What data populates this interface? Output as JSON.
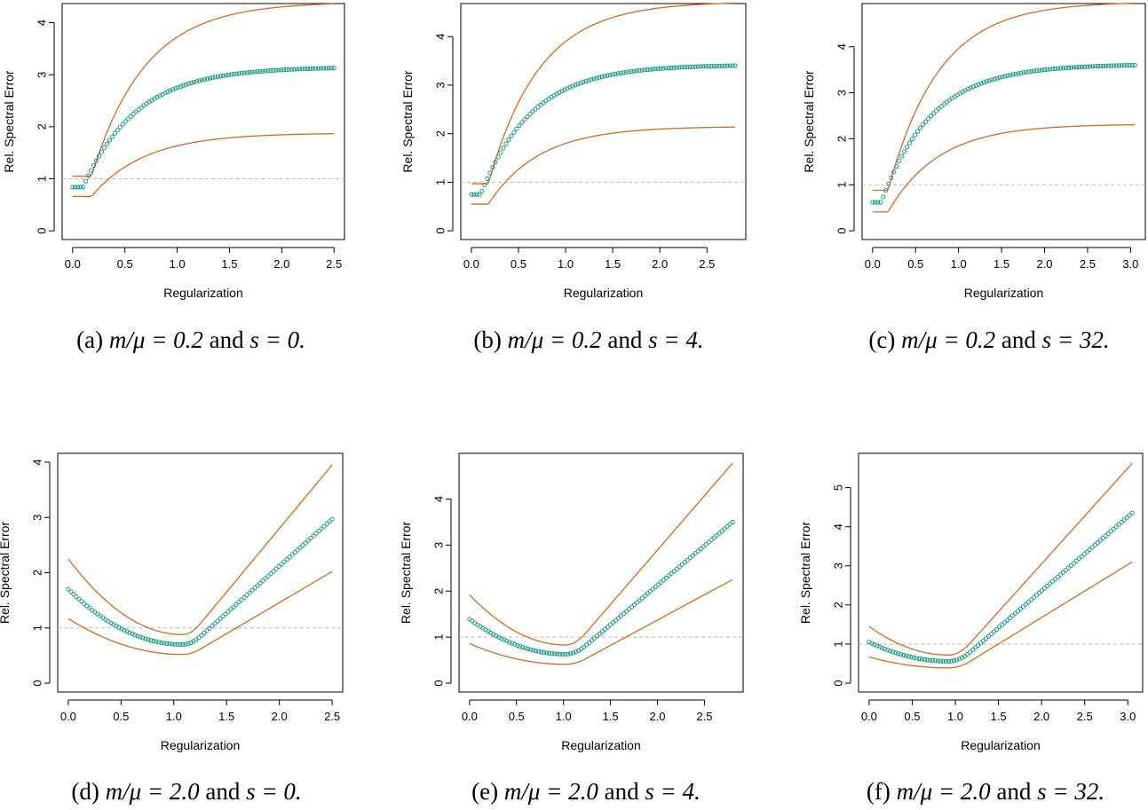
{
  "colors": {
    "band": "#d2691e",
    "mean": "#1a9a82",
    "ref": "#bbbbbb",
    "axis": "#000000"
  },
  "chart_data": [
    {
      "type": "scatter",
      "panel_label": "(a)",
      "ratio": "m/μ = 0.2",
      "conj": "and",
      "s_expr": "s = 0.",
      "xlabel": "Regularization",
      "ylabel": "Rel. Spectral Error",
      "xlim": [
        0,
        2.5
      ],
      "ylim": [
        0,
        4.2
      ],
      "xticks": [
        "0.0",
        "0.5",
        "1.0",
        "1.5",
        "2.0",
        "2.5"
      ],
      "yticks": [
        "0",
        "1",
        "2",
        "3",
        "4"
      ],
      "reference_line": 1.0,
      "shape": "sat",
      "params": {
        "a0": 0.84,
        "ainf": 3.15,
        "x0": 0.1,
        "k": 1.95,
        "ld": 0.18,
        "u0": 1.05,
        "uinf": 4.4,
        "l0": 0.66,
        "linf": 1.88
      }
    },
    {
      "type": "scatter",
      "panel_label": "(b)",
      "ratio": "m/μ = 0.2",
      "conj": "and",
      "s_expr": "s = 4.",
      "xlabel": "Regularization",
      "ylabel": "Rel. Spectral Error",
      "xlim": [
        0,
        2.8
      ],
      "ylim": [
        0,
        4.5
      ],
      "xticks": [
        "0.0",
        "0.5",
        "1.0",
        "1.5",
        "2.0",
        "2.5"
      ],
      "yticks": [
        "0",
        "1",
        "2",
        "3",
        "4"
      ],
      "reference_line": 1.0,
      "shape": "sat",
      "params": {
        "a0": 0.75,
        "ainf": 3.42,
        "x0": 0.1,
        "k": 1.85,
        "ld": 0.18,
        "u0": 0.97,
        "uinf": 4.72,
        "l0": 0.55,
        "linf": 2.15
      }
    },
    {
      "type": "scatter",
      "panel_label": "(c)",
      "ratio": "m/μ = 0.2",
      "conj": "and",
      "s_expr": "s = 32.",
      "xlabel": "Regularization",
      "ylabel": "Rel. Spectral Error",
      "xlim": [
        0,
        3.05
      ],
      "ylim": [
        0,
        4.75
      ],
      "xticks": [
        "0.0",
        "0.5",
        "1.0",
        "1.5",
        "2.0",
        "2.5",
        "3.0"
      ],
      "yticks": [
        "0",
        "1",
        "2",
        "3",
        "4"
      ],
      "reference_line": 1.0,
      "shape": "sat",
      "params": {
        "a0": 0.62,
        "ainf": 3.62,
        "x0": 0.1,
        "k": 1.7,
        "ld": 0.18,
        "u0": 0.88,
        "uinf": 4.98,
        "l0": 0.41,
        "linf": 2.32
      }
    },
    {
      "type": "scatter",
      "panel_label": "(d)",
      "ratio": "m/μ = 2.0",
      "conj": "and",
      "s_expr": "s = 0.",
      "xlabel": "Regularization",
      "ylabel": "Rel. Spectral Error",
      "xlim": [
        0,
        2.5
      ],
      "ylim": [
        0,
        4.0
      ],
      "xticks": [
        "0.0",
        "0.5",
        "1.0",
        "1.5",
        "2.0",
        "2.5"
      ],
      "yticks": [
        "0",
        "1",
        "2",
        "3",
        "4"
      ],
      "reference_line": 1.0,
      "shape": "vee",
      "params": {
        "x0": 0.0,
        "xm": 1.08,
        "x1": 2.5,
        "mean": [
          1.7,
          0.7,
          2.97
        ],
        "upper": [
          2.25,
          0.88,
          3.95
        ],
        "lower": [
          1.17,
          0.52,
          2.02
        ],
        "mL": -0.35,
        "mR": 1.6
      }
    },
    {
      "type": "scatter",
      "panel_label": "(e)",
      "ratio": "m/μ = 2.0",
      "conj": "and",
      "s_expr": "s = 4.",
      "xlabel": "Regularization",
      "ylabel": "Rel. Spectral Error",
      "xlim": [
        0,
        2.8
      ],
      "ylim": [
        0,
        4.8
      ],
      "xticks": [
        "0.0",
        "0.5",
        "1.0",
        "1.5",
        "2.0",
        "2.5"
      ],
      "yticks": [
        "0",
        "1",
        "2",
        "3",
        "4"
      ],
      "reference_line": 1.0,
      "shape": "vee",
      "params": {
        "x0": 0.0,
        "xm": 1.02,
        "x1": 2.8,
        "mean": [
          1.39,
          0.63,
          3.5
        ],
        "upper": [
          1.92,
          0.83,
          4.78
        ],
        "lower": [
          0.86,
          0.41,
          2.25
        ],
        "mL": -0.25,
        "mR": 1.6
      }
    },
    {
      "type": "scatter",
      "panel_label": "(f)",
      "ratio": "m/μ = 2.0",
      "conj": "and",
      "s_expr": "s = 32.",
      "xlabel": "Regularization",
      "ylabel": "Rel. Spectral Error",
      "xlim": [
        0,
        3.05
      ],
      "ylim": [
        0,
        5.65
      ],
      "xticks": [
        "0.0",
        "0.5",
        "1.0",
        "1.5",
        "2.0",
        "2.5",
        "3.0"
      ],
      "yticks": [
        "0",
        "1",
        "2",
        "3",
        "4",
        "5"
      ],
      "reference_line": 1.0,
      "shape": "vee",
      "params": {
        "x0": 0.0,
        "xm": 0.92,
        "x1": 3.05,
        "mean": [
          1.05,
          0.56,
          4.35
        ],
        "upper": [
          1.45,
          0.72,
          5.62
        ],
        "lower": [
          0.67,
          0.39,
          3.1
        ],
        "mL": -0.2,
        "mR": 1.3
      }
    }
  ]
}
